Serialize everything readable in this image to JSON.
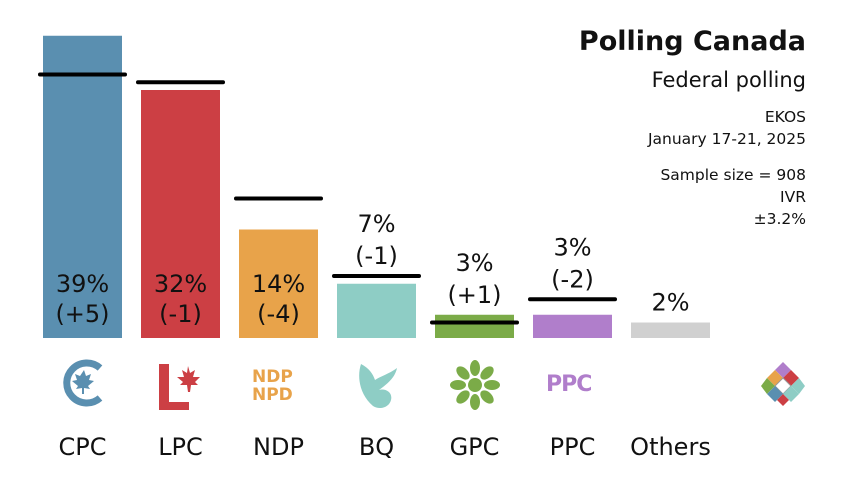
{
  "header": {
    "title": "Polling Canada",
    "subtitle": "Federal polling",
    "pollster": "EKOS",
    "dates": "January 17-21, 2025",
    "sample": "Sample size = 908",
    "method": "IVR",
    "moe": "±3.2%"
  },
  "logos": {
    "ndp_line1": "NDP",
    "ndp_line2": "NPD",
    "ppc": "PPC"
  },
  "chart_data": {
    "type": "bar",
    "title": "Polling Canada",
    "subtitle": "Federal polling",
    "categories": [
      "CPC",
      "LPC",
      "NDP",
      "BQ",
      "GPC",
      "PPC",
      "Others"
    ],
    "values": [
      39,
      32,
      14,
      7,
      3,
      3,
      2
    ],
    "previous": [
      34,
      33,
      18,
      8,
      2,
      5,
      null
    ],
    "change_labels": [
      "(+5)",
      "(-1)",
      "(-4)",
      "(-1)",
      "(+1)",
      "(-2)",
      ""
    ],
    "value_labels": [
      "39%",
      "32%",
      "14%",
      "7%",
      "3%",
      "3%",
      "2%"
    ],
    "colors": [
      "#5a8fb0",
      "#cc3f44",
      "#e8a34a",
      "#8ecdc5",
      "#7bab48",
      "#b07ecb",
      "#d0d0d0"
    ],
    "ylim": [
      0,
      40
    ],
    "grid": false,
    "legend": "none"
  }
}
